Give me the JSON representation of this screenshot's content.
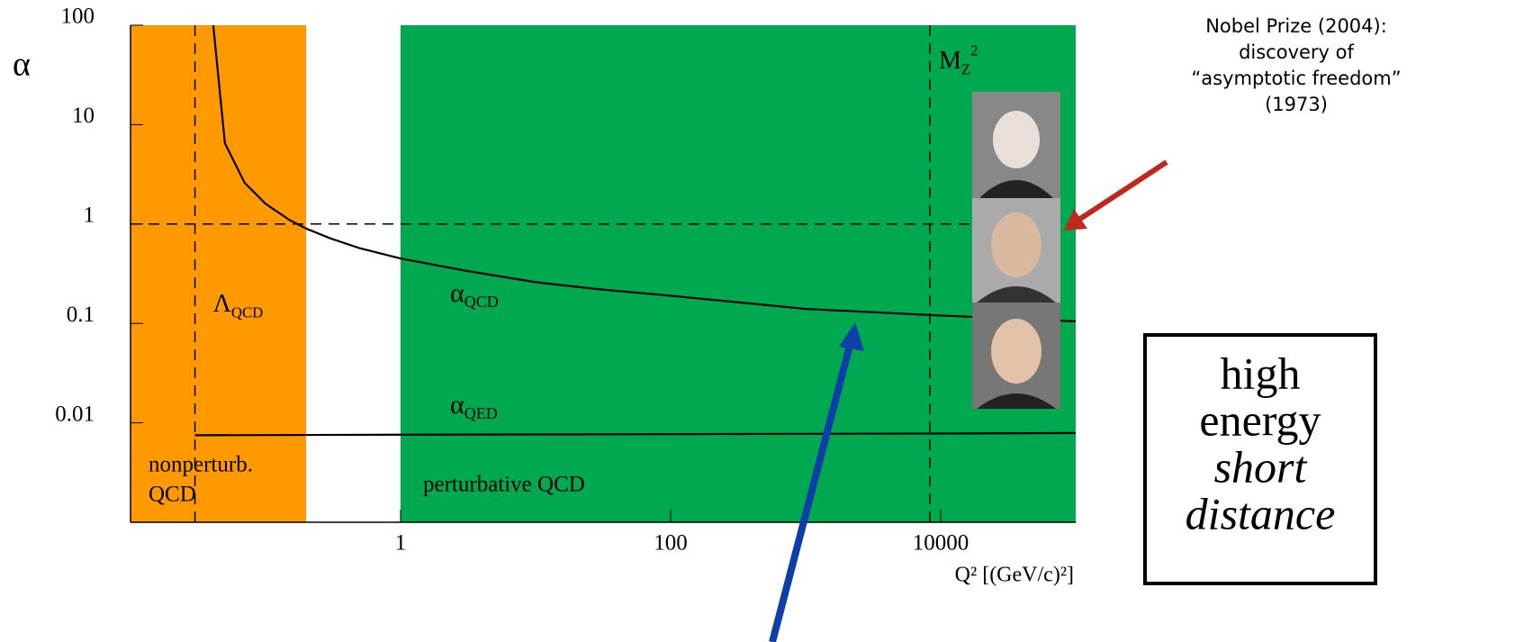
{
  "chart_data": {
    "type": "line",
    "xscale": "log",
    "yscale": "log",
    "xlim": [
      0.01,
      100000
    ],
    "ylim": [
      0.001,
      100
    ],
    "xticks": [
      1,
      100,
      10000
    ],
    "yticks": [
      0.01,
      0.1,
      1,
      10,
      100
    ],
    "ylabel": "α",
    "xlabel": "Q² [(GeV/c)²]",
    "regions": [
      {
        "from": 0.01,
        "to": 0.2,
        "color": "#ff9900",
        "label": [
          "nonperturb.",
          "QCD"
        ]
      },
      {
        "from": 1,
        "to": 100000,
        "color": "#00a84f",
        "label": [
          "perturbative QCD"
        ]
      }
    ],
    "vlines": [
      {
        "x": 0.03,
        "label": {
          "main": "Λ",
          "sub": "QCD"
        }
      },
      {
        "x": 8315,
        "label": {
          "main": "M",
          "sub": "Z",
          "sup": "2"
        }
      }
    ],
    "hlines": [
      {
        "y": 1
      }
    ],
    "series": [
      {
        "label": {
          "main": "α",
          "sub": "QCD"
        },
        "color": "#000000",
        "x": [
          0.041,
          0.05,
          0.07,
          0.1,
          0.15,
          0.2,
          0.3,
          0.5,
          1,
          3,
          10,
          30,
          100,
          1000,
          10000,
          100000
        ],
        "values": [
          100,
          6.5,
          2.6,
          1.6,
          1.1,
          0.9,
          0.72,
          0.57,
          0.45,
          0.34,
          0.26,
          0.22,
          0.19,
          0.14,
          0.12,
          0.105
        ]
      },
      {
        "label": {
          "main": "α",
          "sub": "QED"
        },
        "color": "#000000",
        "x": [
          0.03,
          1,
          10000,
          100000
        ],
        "values": [
          0.0075,
          0.0076,
          0.0078,
          0.0079
        ]
      }
    ]
  },
  "side": {
    "nobel": [
      "Nobel Prize (2004):",
      "discovery of",
      "“asymptotic freedom”",
      "(1973)"
    ],
    "box": {
      "lines": [
        "high",
        "energy"
      ],
      "italic": [
        "short",
        "distance"
      ]
    }
  }
}
